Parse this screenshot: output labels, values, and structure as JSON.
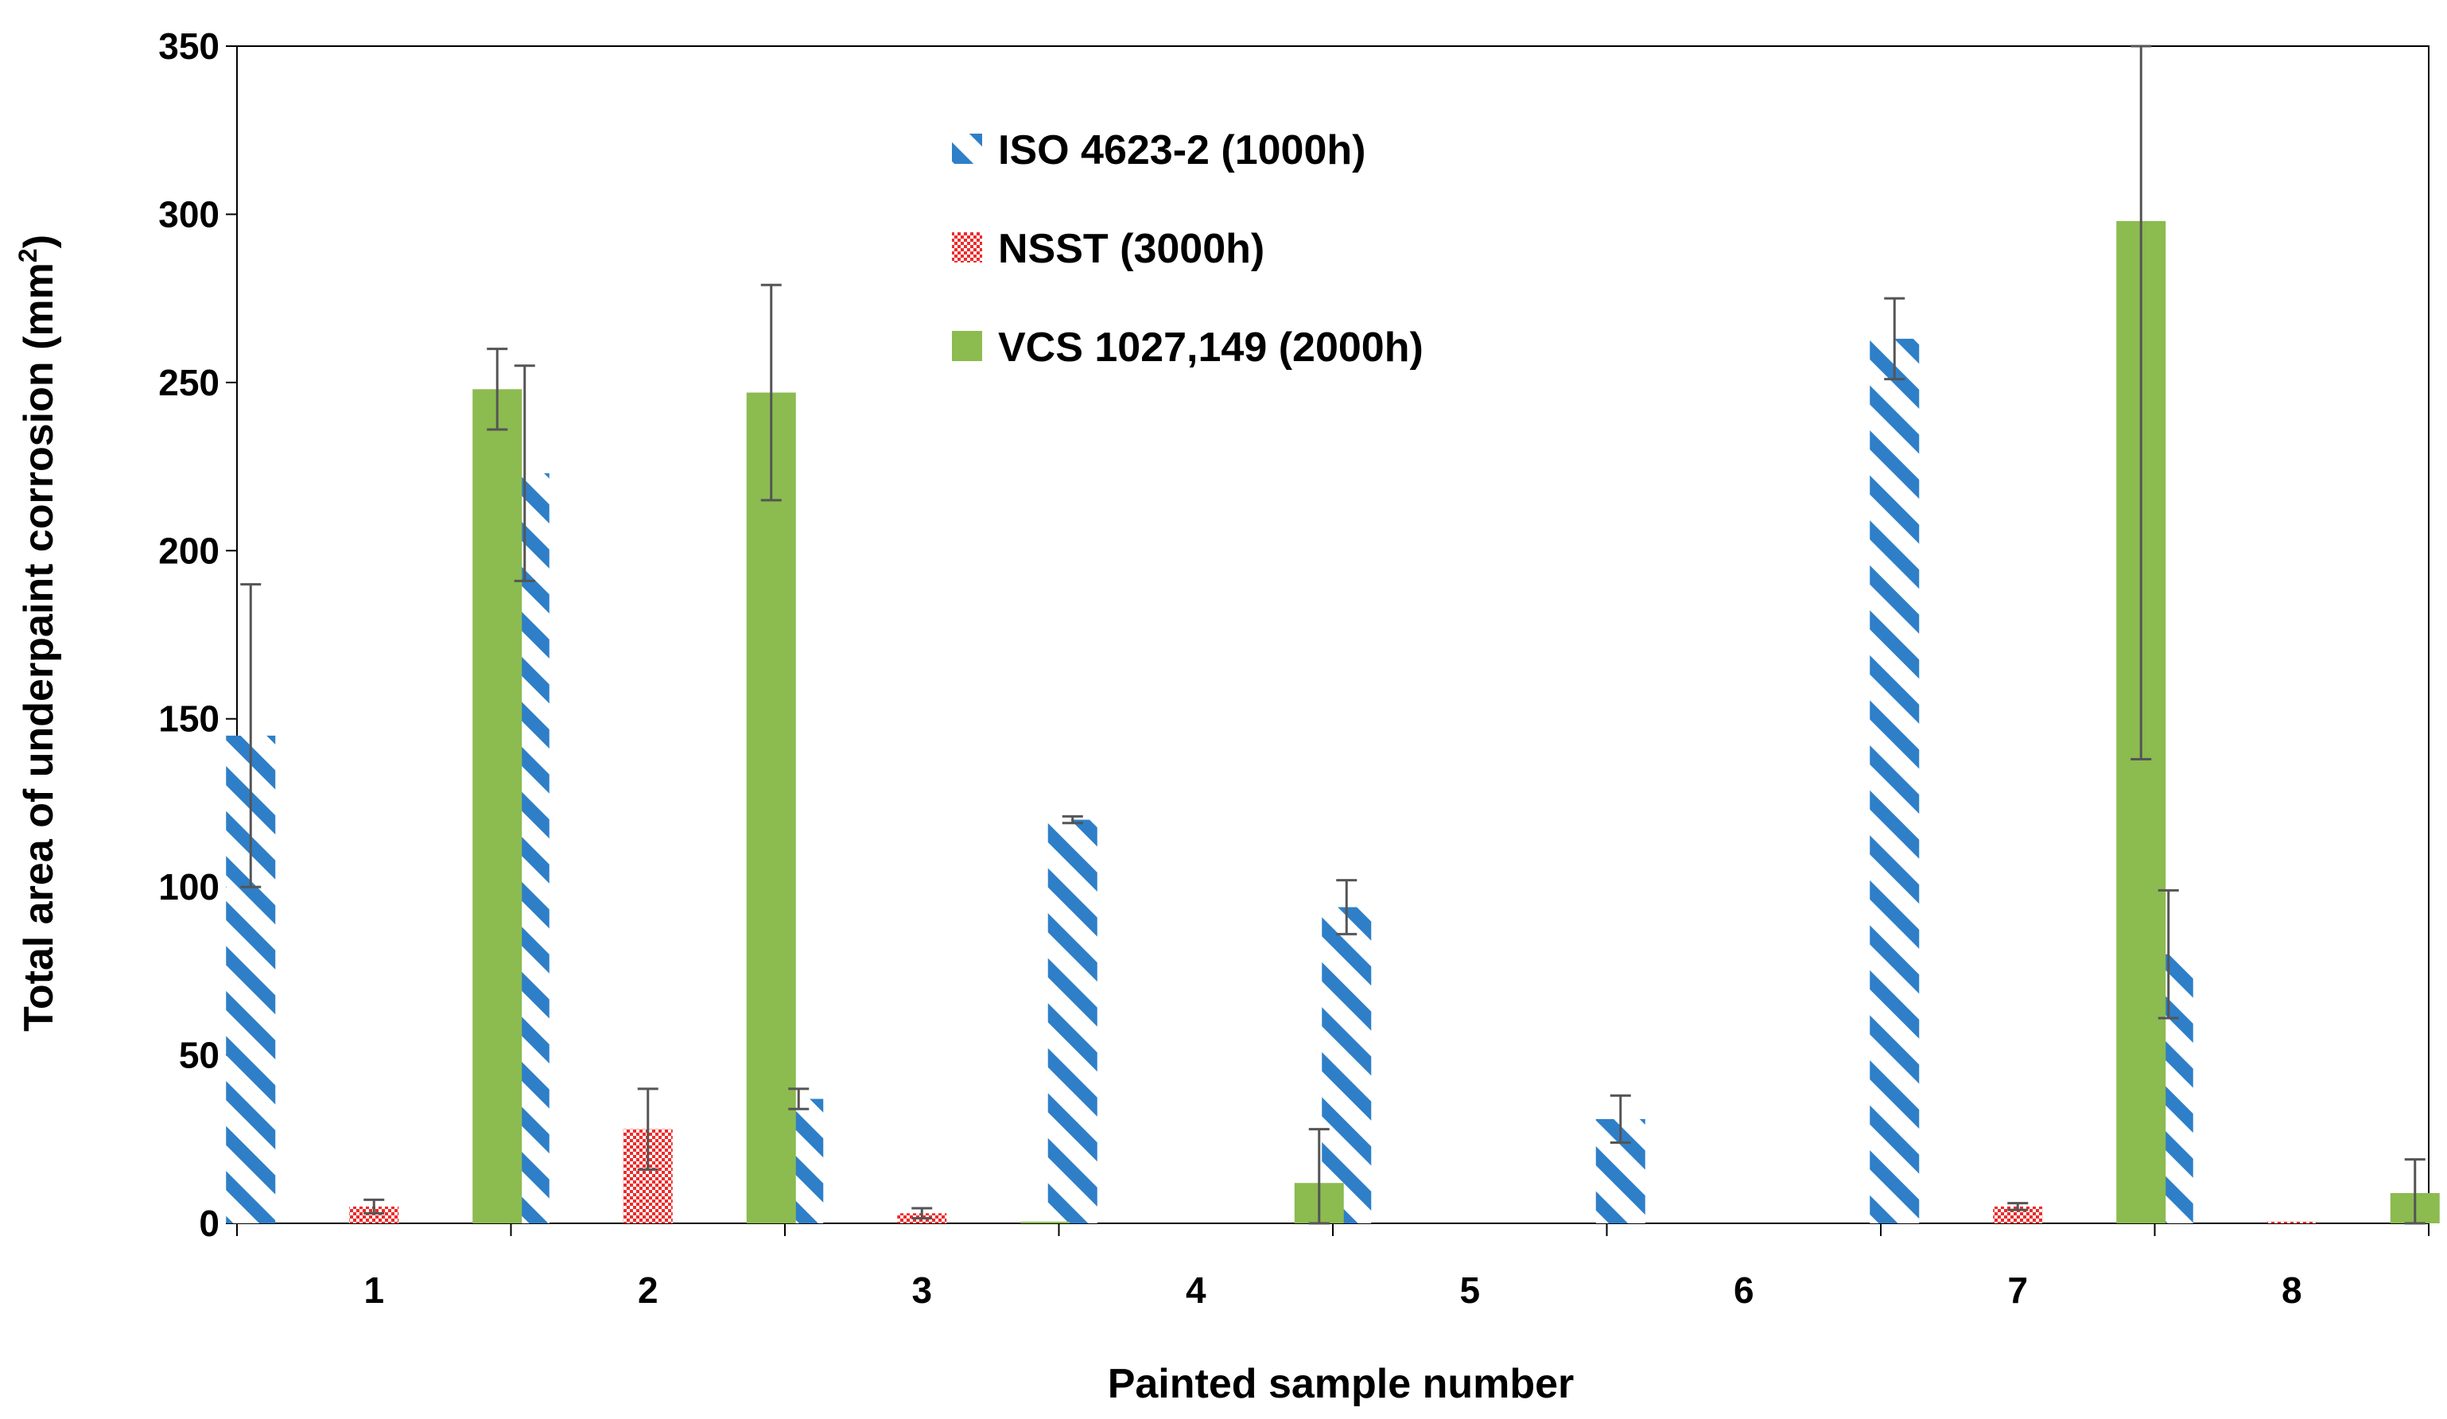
{
  "chart_data": {
    "type": "bar",
    "title": "",
    "xlabel": "Painted sample number",
    "ylabel": "Total area of underpaint corrosion (mm",
    "ylabel_superscript": "2",
    "ylabel_close": ")",
    "categories": [
      "1",
      "2",
      "3",
      "4",
      "5",
      "6",
      "7",
      "8"
    ],
    "ylim": [
      0,
      350
    ],
    "yticks": [
      0,
      50,
      100,
      150,
      200,
      250,
      300,
      350
    ],
    "grid": false,
    "legend_position": "top-center",
    "series": [
      {
        "name": "ISO 4623-2 (1000h)",
        "pattern": "diagonal-stripes",
        "color": "#2e7fc8",
        "values": [
          145,
          223,
          37,
          120,
          94,
          31,
          263,
          80
        ],
        "errors": [
          45,
          32,
          3,
          1,
          8,
          7,
          12,
          19
        ]
      },
      {
        "name": "NSST (3000h)",
        "pattern": "checkerboard",
        "color": "#ee2a2a",
        "values": [
          5,
          28,
          3,
          0,
          0,
          0,
          5,
          0.5
        ],
        "errors": [
          2,
          12,
          1.5,
          0,
          0,
          0,
          1,
          0
        ]
      },
      {
        "name": "VCS 1027,149 (2000h)",
        "pattern": "solid",
        "color": "#8cbb50",
        "values": [
          248,
          247,
          0.5,
          12,
          0,
          0,
          298,
          9
        ],
        "errors": [
          12,
          32,
          0,
          16,
          0,
          0,
          160,
          10
        ]
      }
    ]
  }
}
